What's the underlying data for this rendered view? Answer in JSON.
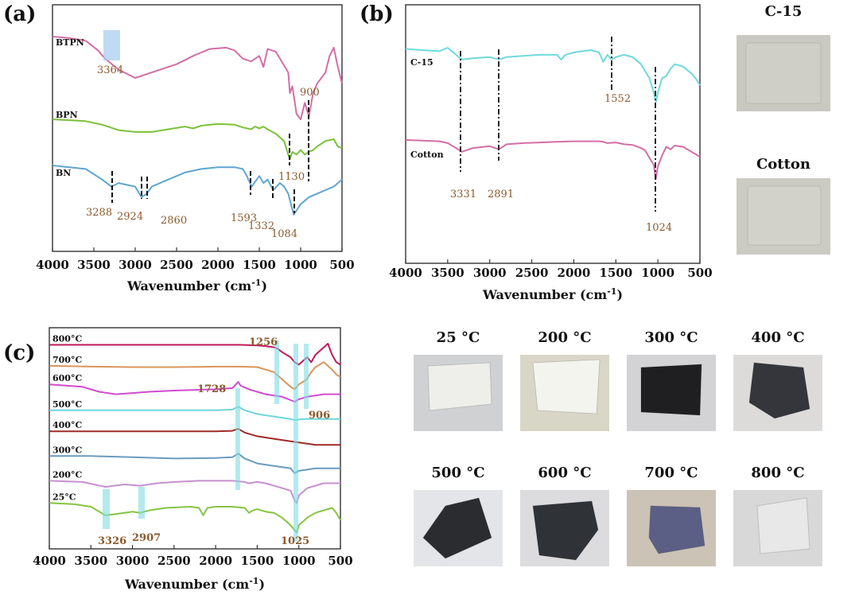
{
  "chart_data": [
    {
      "panel": "(a)",
      "type": "line",
      "xlabel": "Wavenumber (cm-1)",
      "xlim": [
        4000,
        500
      ],
      "x_ticks": [
        "4000",
        "3500",
        "3000",
        "2500",
        "2000",
        "1500",
        "1000",
        "500"
      ],
      "series": [
        {
          "name": "BTPN",
          "color": "#d36ea6",
          "x": [
            4000,
            3800,
            3600,
            3450,
            3364,
            3200,
            3000,
            2700,
            2500,
            2300,
            2100,
            1900,
            1800,
            1700,
            1600,
            1500,
            1450,
            1400,
            1300,
            1200,
            1150,
            1130,
            1100,
            1050,
            1000,
            950,
            900,
            850,
            800,
            700,
            650,
            600,
            550,
            500
          ],
          "y": [
            0.96,
            0.95,
            0.93,
            0.86,
            0.8,
            0.72,
            0.66,
            0.72,
            0.76,
            0.82,
            0.87,
            0.88,
            0.86,
            0.8,
            0.78,
            0.82,
            0.74,
            0.87,
            0.85,
            0.75,
            0.7,
            0.55,
            0.6,
            0.4,
            0.36,
            0.48,
            0.38,
            0.55,
            0.62,
            0.7,
            0.82,
            0.88,
            0.74,
            0.62
          ]
        },
        {
          "name": "BPN",
          "color": "#7bc13a",
          "x": [
            4000,
            3800,
            3600,
            3400,
            3200,
            3000,
            2800,
            2600,
            2400,
            2300,
            2200,
            2000,
            1800,
            1700,
            1600,
            1550,
            1500,
            1450,
            1400,
            1300,
            1200,
            1150,
            1130,
            1100,
            1050,
            1000,
            950,
            900,
            850,
            800,
            700,
            600,
            550,
            500
          ],
          "y": [
            0.94,
            0.93,
            0.92,
            0.88,
            0.82,
            0.8,
            0.8,
            0.83,
            0.86,
            0.84,
            0.87,
            0.89,
            0.88,
            0.85,
            0.83,
            0.86,
            0.84,
            0.86,
            0.83,
            0.78,
            0.7,
            0.55,
            0.5,
            0.58,
            0.55,
            0.6,
            0.55,
            0.58,
            0.6,
            0.64,
            0.7,
            0.72,
            0.64,
            0.62
          ]
        },
        {
          "name": "BN",
          "color": "#5fa6cf",
          "x": [
            4000,
            3800,
            3600,
            3400,
            3288,
            3200,
            3000,
            2924,
            2860,
            2800,
            2600,
            2400,
            2200,
            2000,
            1800,
            1700,
            1650,
            1593,
            1500,
            1450,
            1400,
            1332,
            1250,
            1200,
            1150,
            1084,
            1000,
            950,
            900,
            800,
            700,
            600,
            550,
            500
          ],
          "y": [
            0.9,
            0.89,
            0.88,
            0.82,
            0.78,
            0.8,
            0.78,
            0.72,
            0.74,
            0.78,
            0.82,
            0.86,
            0.88,
            0.89,
            0.89,
            0.88,
            0.84,
            0.78,
            0.84,
            0.8,
            0.82,
            0.76,
            0.8,
            0.78,
            0.74,
            0.62,
            0.68,
            0.7,
            0.72,
            0.74,
            0.76,
            0.78,
            0.8,
            0.82
          ]
        }
      ],
      "annotations": [
        "3364",
        "900",
        "1130",
        "3288",
        "2924",
        "2860",
        "1593",
        "1332",
        "1084"
      ]
    },
    {
      "panel": "(b)",
      "type": "line",
      "xlabel": "Wavenumber (cm-1)",
      "xlim": [
        4000,
        500
      ],
      "x_ticks": [
        "4000",
        "3500",
        "3000",
        "2500",
        "2000",
        "1500",
        "1000",
        "500"
      ],
      "series": [
        {
          "name": "C-15",
          "color": "#6fd9dc",
          "x": [
            4000,
            3800,
            3600,
            3500,
            3400,
            3331,
            3200,
            3000,
            2891,
            2800,
            2600,
            2400,
            2200,
            2150,
            2100,
            2000,
            1900,
            1800,
            1700,
            1650,
            1600,
            1552,
            1500,
            1400,
            1300,
            1200,
            1150,
            1100,
            1050,
            1024,
            1000,
            950,
            900,
            850,
            800,
            700,
            600,
            550,
            500
          ],
          "y": [
            0.95,
            0.94,
            0.93,
            0.96,
            0.9,
            0.86,
            0.87,
            0.88,
            0.86,
            0.88,
            0.89,
            0.9,
            0.9,
            0.86,
            0.9,
            0.92,
            0.93,
            0.94,
            0.92,
            0.84,
            0.9,
            0.86,
            0.88,
            0.9,
            0.88,
            0.82,
            0.76,
            0.7,
            0.58,
            0.5,
            0.58,
            0.7,
            0.72,
            0.78,
            0.82,
            0.8,
            0.74,
            0.7,
            0.64
          ]
        },
        {
          "name": "Cotton",
          "color": "#d36ea6",
          "x": [
            4000,
            3800,
            3600,
            3500,
            3400,
            3331,
            3200,
            3000,
            2891,
            2800,
            2600,
            2400,
            2200,
            2000,
            1800,
            1700,
            1650,
            1600,
            1500,
            1400,
            1300,
            1200,
            1150,
            1100,
            1050,
            1024,
            1000,
            950,
            900,
            850,
            800,
            700,
            600,
            550,
            500
          ],
          "y": [
            0.95,
            0.94,
            0.93,
            0.9,
            0.82,
            0.76,
            0.82,
            0.85,
            0.8,
            0.88,
            0.9,
            0.91,
            0.92,
            0.93,
            0.93,
            0.93,
            0.92,
            0.9,
            0.91,
            0.88,
            0.87,
            0.82,
            0.78,
            0.66,
            0.55,
            0.32,
            0.52,
            0.7,
            0.84,
            0.8,
            0.86,
            0.84,
            0.76,
            0.72,
            0.68
          ]
        }
      ],
      "annotations": [
        "3331",
        "2891",
        "1552",
        "1024"
      ]
    },
    {
      "panel": "(c)",
      "type": "line",
      "xlabel": "Wavenumber (cm-1)",
      "xlim": [
        4000,
        500
      ],
      "x_ticks": [
        "4000",
        "3500",
        "3000",
        "2500",
        "2000",
        "1500",
        "1000",
        "500"
      ],
      "series": [
        {
          "name": "800°C",
          "color": "#c2185b",
          "x": [
            4000,
            3500,
            3000,
            2500,
            2000,
            1700,
            1500,
            1400,
            1300,
            1256,
            1200,
            1100,
            1050,
            1000,
            950,
            900,
            850,
            800,
            700,
            650,
            600,
            550,
            500
          ],
          "y": [
            8.0,
            8.0,
            8.0,
            8.0,
            8.0,
            8.0,
            7.98,
            7.95,
            7.9,
            7.85,
            7.7,
            7.5,
            7.3,
            7.2,
            7.35,
            7.5,
            7.3,
            7.6,
            7.9,
            8.05,
            7.6,
            7.3,
            7.2
          ]
        },
        {
          "name": "700°C",
          "color": "#d9955a",
          "x": [
            4000,
            3500,
            3000,
            2500,
            2000,
            1700,
            1500,
            1300,
            1200,
            1100,
            1050,
            1000,
            950,
            906,
            850,
            800,
            700,
            600,
            550,
            500
          ],
          "y": [
            7.15,
            7.12,
            7.1,
            7.1,
            7.12,
            7.12,
            7.1,
            6.9,
            6.6,
            6.3,
            6.2,
            6.4,
            6.5,
            6.6,
            6.9,
            7.1,
            7.3,
            7.0,
            6.8,
            6.7
          ]
        },
        {
          "name": "600°C",
          "color": "#d04bd0",
          "x": [
            4000,
            3600,
            3400,
            3200,
            3000,
            2800,
            2500,
            2000,
            1800,
            1728,
            1700,
            1600,
            1500,
            1400,
            1200,
            1050,
            1000,
            900,
            800,
            700,
            600,
            500
          ],
          "y": [
            6.4,
            6.3,
            6.1,
            6.0,
            6.05,
            6.1,
            6.15,
            6.2,
            6.25,
            6.5,
            6.35,
            6.2,
            6.1,
            6.0,
            5.9,
            5.7,
            5.8,
            5.9,
            5.95,
            6.0,
            6.0,
            6.0
          ]
        },
        {
          "name": "500°C",
          "color": "#6fd6d9",
          "x": [
            4000,
            3500,
            3000,
            2500,
            2000,
            1800,
            1728,
            1650,
            1500,
            1300,
            1100,
            1050,
            1000,
            900,
            800,
            700,
            600,
            500
          ],
          "y": [
            5.35,
            5.35,
            5.35,
            5.35,
            5.35,
            5.38,
            5.5,
            5.35,
            5.2,
            5.1,
            5.0,
            4.95,
            4.98,
            5.0,
            5.0,
            5.0,
            5.0,
            5.0
          ]
        },
        {
          "name": "400°C",
          "color": "#a02a2a",
          "x": [
            4000,
            3500,
            3000,
            2500,
            2000,
            1800,
            1728,
            1650,
            1500,
            1300,
            1100,
            1000,
            900,
            800,
            700,
            600,
            500
          ],
          "y": [
            4.5,
            4.5,
            4.5,
            4.5,
            4.5,
            4.52,
            4.6,
            4.45,
            4.3,
            4.2,
            4.1,
            4.05,
            4.0,
            3.95,
            3.95,
            3.95,
            3.95
          ]
        },
        {
          "name": "300°C",
          "color": "#6a9bbf",
          "x": [
            4000,
            3500,
            3000,
            2500,
            2000,
            1800,
            1728,
            1650,
            1500,
            1300,
            1100,
            1050,
            1000,
            900,
            800,
            700,
            600,
            500
          ],
          "y": [
            3.5,
            3.5,
            3.45,
            3.4,
            3.42,
            3.45,
            3.6,
            3.4,
            3.2,
            3.1,
            3.0,
            2.8,
            2.9,
            2.95,
            3.0,
            3.0,
            3.0,
            3.0
          ]
        },
        {
          "name": "200°C",
          "color": "#c78fd0",
          "x": [
            4000,
            3600,
            3326,
            3100,
            2907,
            2700,
            2500,
            2200,
            2000,
            1800,
            1650,
            1600,
            1500,
            1400,
            1300,
            1100,
            1050,
            1025,
            1000,
            900,
            800,
            700,
            600,
            500
          ],
          "y": [
            2.5,
            2.45,
            2.25,
            2.35,
            2.3,
            2.4,
            2.45,
            2.5,
            2.5,
            2.5,
            2.45,
            2.4,
            2.45,
            2.4,
            2.3,
            2.1,
            1.7,
            1.6,
            1.9,
            2.2,
            2.3,
            2.4,
            2.4,
            2.4
          ]
        },
        {
          "name": "25°C",
          "color": "#86c442",
          "x": [
            4000,
            3700,
            3500,
            3326,
            3200,
            3000,
            2907,
            2800,
            2600,
            2300,
            2200,
            2150,
            2100,
            2000,
            1800,
            1650,
            1600,
            1550,
            1500,
            1400,
            1300,
            1200,
            1100,
            1050,
            1025,
            1000,
            900,
            800,
            700,
            600,
            550,
            500
          ],
          "y": [
            1.6,
            1.55,
            1.45,
            1.1,
            1.15,
            1.25,
            1.2,
            1.3,
            1.4,
            1.45,
            1.4,
            1.1,
            1.4,
            1.45,
            1.45,
            1.4,
            1.2,
            1.3,
            1.35,
            1.25,
            1.2,
            1.0,
            0.7,
            0.5,
            0.4,
            0.7,
            1.0,
            1.2,
            1.3,
            1.4,
            1.2,
            0.9
          ]
        }
      ],
      "annotations": [
        "1256",
        "1728",
        "906",
        "3326",
        "2907",
        "1025"
      ]
    }
  ],
  "panels": {
    "a": {
      "label": "(a)"
    },
    "b": {
      "label": "(b)"
    },
    "c": {
      "label": "(c)"
    }
  },
  "samples_b": [
    {
      "label": "C-15",
      "color": "#cfcfc8"
    },
    {
      "label": "Cotton",
      "color": "#d2d2ca"
    }
  ],
  "samples_c": [
    {
      "label": "25  °C",
      "bg": "#cfd1d3",
      "color": "#eeeeea"
    },
    {
      "label": "200  °C",
      "bg": "#d8d6c7",
      "color": "#f4f4ef"
    },
    {
      "label": "300  °C",
      "bg": "#d3d3d5",
      "color": "#1f1f22"
    },
    {
      "label": "400  °C",
      "bg": "#dddbda",
      "color": "#34363b"
    },
    {
      "label": "500  °C",
      "bg": "#e3e5e8",
      "color": "#2a2c30"
    },
    {
      "label": "600  °C",
      "bg": "#dcdcde",
      "color": "#2f3236"
    },
    {
      "label": "700  °C",
      "bg": "#cbc3b5",
      "color": "#5b5f86"
    },
    {
      "label": "800 °C",
      "bg": "#d8d8d8",
      "color": "#e8e8e8"
    }
  ]
}
